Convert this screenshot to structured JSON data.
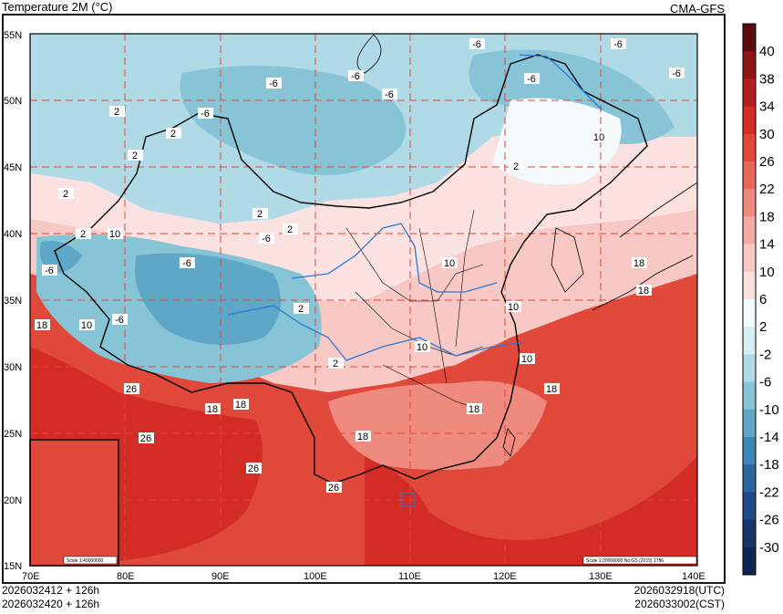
{
  "title": "Temperature  2M (°C)",
  "source": "CMA-GFS",
  "init_lines": [
    "2026032412 + 126h",
    "2026032420 + 126h"
  ],
  "valid_lines": [
    "2026032918(UTC)",
    "2026033002(CST)"
  ],
  "lon_labels": [
    "70E",
    "80E",
    "90E",
    "100E",
    "110E",
    "120E",
    "130E",
    "140E"
  ],
  "lat_labels": [
    "55N",
    "50N",
    "45N",
    "40N",
    "35N",
    "30N",
    "25N",
    "20N",
    "15N"
  ],
  "colorbar": {
    "labels": [
      "40",
      "38",
      "34",
      "30",
      "26",
      "22",
      "18",
      "14",
      "10",
      "6",
      "2",
      "-2",
      "-6",
      "-10",
      "-14",
      "-18",
      "-22",
      "-26",
      "-30"
    ],
    "colors": [
      "#5a0b0b",
      "#8c1515",
      "#b31f1f",
      "#d22c25",
      "#e0483a",
      "#e8685a",
      "#ef8a7f",
      "#f4aaa4",
      "#f8c8c5",
      "#fbe2e1",
      "#f4fafc",
      "#d7eef3",
      "#b0dbe6",
      "#86c4d6",
      "#5ea7c7",
      "#3d86b5",
      "#2c65a0",
      "#204a85",
      "#173569",
      "#0f2450"
    ]
  },
  "contour_labels": [
    "-6",
    "-6",
    "-6",
    "-6",
    "-6",
    "-6",
    "-6",
    "-6",
    "-6",
    "-6",
    "-6",
    "-6",
    "2",
    "2",
    "2",
    "2",
    "2",
    "2",
    "2",
    "2",
    "2",
    "2",
    "10",
    "10",
    "10",
    "10",
    "10",
    "10",
    "10",
    "18",
    "18",
    "18",
    "18",
    "18",
    "18",
    "18",
    "18",
    "26",
    "26",
    "26",
    "26"
  ],
  "inset_scale": "Scale 1:40000000",
  "map_scale": "Scale 1:20000000 No:GS (2019) 1786"
}
